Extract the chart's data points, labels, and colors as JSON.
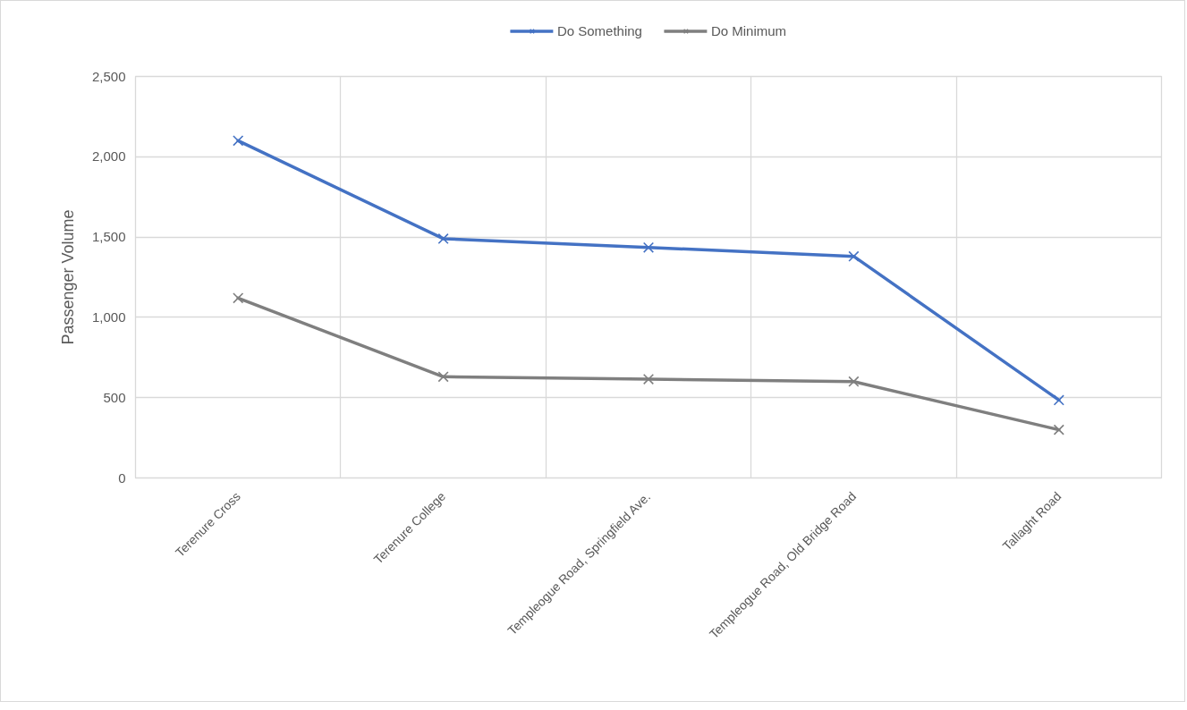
{
  "chart_data": {
    "type": "line",
    "ylabel": "Passenger Volume",
    "categories": [
      "Terenure Cross",
      "Terenure College",
      "Templeogue Road, Springfield Ave.",
      "Templeogue Road, Old Bridge Road",
      "Tallaght Road"
    ],
    "series": [
      {
        "name": "Do Something",
        "color": "#4472c4",
        "values": [
          2100,
          1490,
          1435,
          1380,
          485
        ]
      },
      {
        "name": "Do Minimum",
        "color": "#7f7f7f",
        "values": [
          1120,
          630,
          615,
          600,
          300
        ]
      }
    ],
    "ylim": [
      0,
      2500
    ],
    "yticks": [
      0,
      500,
      {
        "value": 1000,
        "label": "1,000"
      },
      {
        "value": 1500,
        "label": "1,500"
      },
      {
        "value": 2000,
        "label": "2,000"
      },
      {
        "value": 2500,
        "label": "2,500"
      }
    ],
    "grid": true,
    "legend": "top",
    "marker": "cross",
    "line_style": "solid"
  }
}
